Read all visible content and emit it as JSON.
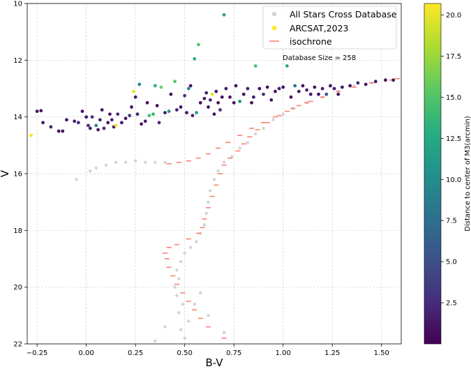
{
  "chart_data": {
    "type": "scatter",
    "title": "",
    "xlabel": "B-V",
    "ylabel": "V",
    "xlim": [
      -0.3,
      1.6
    ],
    "ylim": [
      22,
      10
    ],
    "y_inverted": true,
    "grid": true,
    "xticks": [
      -0.25,
      0.0,
      0.25,
      0.5,
      0.75,
      1.0,
      1.25,
      1.5
    ],
    "xtick_labels": [
      "−0.25",
      "0.00",
      "0.25",
      "0.50",
      "0.75",
      "1.00",
      "1.25",
      "1.50"
    ],
    "yticks": [
      10,
      12,
      14,
      16,
      18,
      20,
      22
    ],
    "ytick_labels": [
      "10",
      "12",
      "14",
      "16",
      "18",
      "20",
      "22"
    ],
    "legend": {
      "position": "top-right",
      "entries": [
        {
          "label": "All Stars Cross Database",
          "marker": "dot",
          "color": "#d3d3d3"
        },
        {
          "label": "ARCSAT,2023",
          "marker": "dot",
          "color": "#fde725"
        },
        {
          "label": "isochrone",
          "marker": "dash",
          "color": "#fa8072"
        }
      ]
    },
    "annotation": "Database Size = 258",
    "colorbar": {
      "label": "Distance to center of M3(arcmin)",
      "colormap": "viridis",
      "range": [
        0.0,
        20.7
      ],
      "ticks": [
        2.5,
        5.0,
        7.5,
        10.0,
        12.5,
        15.0,
        17.5,
        20.0
      ],
      "tick_labels": [
        "2.5",
        "5.0",
        "7.5",
        "10.0",
        "12.5",
        "15.0",
        "17.5",
        "20.0"
      ]
    },
    "series": [
      {
        "name": "All Stars Cross Database",
        "color": "#d3d3d3",
        "description": "background stars: main sequence, subgiant branch, red giant branch, horizontal branch",
        "points": [
          [
            0.5,
            21.8
          ],
          [
            0.48,
            21.5
          ],
          [
            0.52,
            21.2
          ],
          [
            0.47,
            20.9
          ],
          [
            0.49,
            20.6
          ],
          [
            0.46,
            20.3
          ],
          [
            0.45,
            20.0
          ],
          [
            0.47,
            19.7
          ],
          [
            0.46,
            19.4
          ],
          [
            0.48,
            19.1
          ],
          [
            0.5,
            18.8
          ],
          [
            0.53,
            18.6
          ],
          [
            0.56,
            18.4
          ],
          [
            0.58,
            18.1
          ],
          [
            0.6,
            17.8
          ],
          [
            0.61,
            17.4
          ],
          [
            0.62,
            17.0
          ],
          [
            0.63,
            16.6
          ],
          [
            0.65,
            16.2
          ],
          [
            0.67,
            15.9
          ],
          [
            0.7,
            15.6
          ],
          [
            0.74,
            15.4
          ],
          [
            0.78,
            15.1
          ],
          [
            0.82,
            14.9
          ],
          [
            0.86,
            14.6
          ],
          [
            0.9,
            14.4
          ],
          [
            0.95,
            14.1
          ],
          [
            1.0,
            13.9
          ],
          [
            1.05,
            13.7
          ],
          [
            1.12,
            13.5
          ],
          [
            1.2,
            13.3
          ],
          [
            1.28,
            13.1
          ],
          [
            1.36,
            12.9
          ],
          [
            1.45,
            12.8
          ],
          [
            0.2,
            15.6
          ],
          [
            0.15,
            15.6
          ],
          [
            0.1,
            15.7
          ],
          [
            0.05,
            15.8
          ],
          [
            0.02,
            15.9
          ],
          [
            0.25,
            15.55
          ],
          [
            0.3,
            15.6
          ],
          [
            0.35,
            15.6
          ],
          [
            0.4,
            15.6
          ],
          [
            -0.05,
            16.2
          ],
          [
            0.58,
            20.2
          ],
          [
            0.55,
            20.6
          ],
          [
            0.62,
            21.0
          ],
          [
            0.4,
            21.4
          ],
          [
            0.35,
            21.9
          ],
          [
            0.7,
            21.6
          ]
        ]
      },
      {
        "name": "ARCSAT,2023",
        "color": "#fde725",
        "description": "measured stars colored by distance to center of M3",
        "points": [
          [
            -0.28,
            14.65,
            20.5
          ],
          [
            -0.25,
            13.8,
            1.0
          ],
          [
            -0.23,
            13.78,
            1.2
          ],
          [
            -0.22,
            14.2,
            1.5
          ],
          [
            -0.18,
            14.35,
            2.0
          ],
          [
            -0.14,
            14.5,
            1.0
          ],
          [
            -0.12,
            14.5,
            1.3
          ],
          [
            -0.1,
            14.1,
            1.0
          ],
          [
            -0.06,
            14.15,
            1.6
          ],
          [
            -0.04,
            14.2,
            2.0
          ],
          [
            -0.02,
            13.8,
            1.2
          ],
          [
            0.0,
            14.0,
            1.0
          ],
          [
            0.01,
            14.3,
            2.5
          ],
          [
            0.02,
            14.4,
            1.5
          ],
          [
            0.03,
            14.0,
            3.0
          ],
          [
            0.05,
            14.3,
            9.0
          ],
          [
            0.06,
            14.45,
            1.0
          ],
          [
            0.07,
            14.1,
            1.8
          ],
          [
            0.08,
            13.75,
            1.4
          ],
          [
            0.09,
            14.4,
            2.6
          ],
          [
            0.11,
            14.2,
            1.0
          ],
          [
            0.12,
            13.9,
            1.1
          ],
          [
            0.13,
            14.1,
            1.9
          ],
          [
            0.14,
            14.35,
            1.0
          ],
          [
            0.15,
            14.3,
            20.0
          ],
          [
            0.16,
            13.9,
            2.2
          ],
          [
            0.18,
            14.2,
            1.4
          ],
          [
            0.2,
            14.05,
            1.0
          ],
          [
            0.22,
            13.95,
            3.5
          ],
          [
            0.23,
            13.65,
            1.2
          ],
          [
            0.24,
            13.1,
            20.2
          ],
          [
            0.25,
            13.3,
            1.6
          ],
          [
            0.26,
            13.9,
            2.0
          ],
          [
            0.27,
            12.85,
            9.5
          ],
          [
            0.28,
            14.25,
            1.0
          ],
          [
            0.3,
            14.15,
            1.7
          ],
          [
            0.31,
            13.5,
            1.1
          ],
          [
            0.32,
            13.95,
            14.5
          ],
          [
            0.34,
            13.9,
            13.5
          ],
          [
            0.35,
            12.9,
            13.0
          ],
          [
            0.36,
            13.6,
            1.0
          ],
          [
            0.37,
            14.2,
            2.3
          ],
          [
            0.38,
            12.95,
            16.0
          ],
          [
            0.4,
            13.85,
            1.5
          ],
          [
            0.42,
            13.8,
            10.5
          ],
          [
            0.43,
            13.2,
            1.0
          ],
          [
            0.45,
            12.75,
            15.0
          ],
          [
            0.46,
            13.75,
            2.0
          ],
          [
            0.48,
            13.65,
            1.2
          ],
          [
            0.5,
            13.25,
            3.0
          ],
          [
            0.51,
            13.85,
            1.0
          ],
          [
            0.52,
            13.0,
            10.0
          ],
          [
            0.53,
            12.9,
            1.0
          ],
          [
            0.54,
            13.95,
            1.6
          ],
          [
            0.55,
            11.95,
            13.0
          ],
          [
            0.56,
            13.85,
            11.5
          ],
          [
            0.57,
            11.45,
            15.0
          ],
          [
            0.58,
            13.5,
            1.0
          ],
          [
            0.6,
            13.35,
            1.4
          ],
          [
            0.61,
            13.15,
            1.8
          ],
          [
            0.62,
            13.65,
            1.0
          ],
          [
            0.63,
            13.4,
            2.2
          ],
          [
            0.64,
            13.2,
            20.0
          ],
          [
            0.65,
            13.9,
            1.0
          ],
          [
            0.66,
            13.1,
            1.3
          ],
          [
            0.67,
            13.5,
            1.0
          ],
          [
            0.68,
            13.75,
            3.0
          ],
          [
            0.69,
            13.3,
            1.0
          ],
          [
            0.7,
            10.4,
            12.0
          ],
          [
            0.71,
            13.0,
            1.6
          ],
          [
            0.73,
            13.3,
            1.0
          ],
          [
            0.75,
            13.5,
            1.2
          ],
          [
            0.76,
            12.9,
            1.0
          ],
          [
            0.78,
            13.45,
            10.5
          ],
          [
            0.8,
            13.2,
            1.0
          ],
          [
            0.82,
            13.0,
            1.9
          ],
          [
            0.84,
            13.5,
            1.0
          ],
          [
            0.85,
            13.3,
            1.4
          ],
          [
            0.86,
            12.2,
            14.5
          ],
          [
            0.88,
            13.0,
            1.0
          ],
          [
            0.9,
            13.2,
            2.6
          ],
          [
            0.92,
            12.95,
            1.0
          ],
          [
            0.94,
            13.4,
            1.2
          ],
          [
            0.96,
            13.1,
            1.0
          ],
          [
            0.98,
            13.0,
            1.7
          ],
          [
            1.0,
            12.95,
            1.0
          ],
          [
            1.02,
            12.2,
            12.5
          ],
          [
            1.04,
            13.3,
            1.0
          ],
          [
            1.06,
            12.9,
            8.0
          ],
          [
            1.08,
            13.1,
            1.4
          ],
          [
            1.1,
            12.9,
            1.0
          ],
          [
            1.12,
            13.05,
            2.0
          ],
          [
            1.14,
            13.2,
            1.0
          ],
          [
            1.16,
            12.95,
            1.3
          ],
          [
            1.18,
            13.2,
            1.0
          ],
          [
            1.2,
            13.0,
            1.6
          ],
          [
            1.22,
            13.2,
            6.0
          ],
          [
            1.24,
            12.9,
            1.0
          ],
          [
            1.26,
            13.0,
            1.8
          ],
          [
            1.28,
            13.2,
            1.0
          ],
          [
            1.3,
            12.95,
            1.2
          ],
          [
            1.34,
            12.9,
            1.0
          ],
          [
            1.38,
            12.8,
            2.5
          ],
          [
            1.42,
            12.85,
            1.0
          ],
          [
            1.47,
            12.75,
            1.4
          ],
          [
            1.52,
            12.7,
            1.0
          ],
          [
            1.56,
            12.7,
            1.2
          ]
        ]
      },
      {
        "name": "isochrone",
        "color": "#fa8072",
        "points": [
          [
            0.7,
            21.8
          ],
          [
            0.62,
            21.4
          ],
          [
            0.58,
            21.1
          ],
          [
            0.55,
            20.8
          ],
          [
            0.52,
            20.5
          ],
          [
            0.49,
            20.2
          ],
          [
            0.46,
            19.9
          ],
          [
            0.44,
            19.6
          ],
          [
            0.42,
            19.3
          ],
          [
            0.41,
            19.0
          ],
          [
            0.4,
            18.8
          ],
          [
            0.42,
            18.6
          ],
          [
            0.46,
            18.5
          ],
          [
            0.52,
            18.3
          ],
          [
            0.57,
            18.1
          ],
          [
            0.59,
            17.9
          ],
          [
            0.6,
            17.6
          ],
          [
            0.62,
            17.2
          ],
          [
            0.64,
            16.8
          ],
          [
            0.66,
            16.4
          ],
          [
            0.68,
            16.0
          ],
          [
            0.7,
            15.7
          ],
          [
            0.73,
            15.45
          ],
          [
            0.77,
            15.2
          ],
          [
            0.8,
            14.95
          ],
          [
            0.83,
            14.7
          ],
          [
            0.87,
            14.45
          ],
          [
            0.92,
            14.2
          ],
          [
            0.98,
            13.95
          ],
          [
            1.05,
            13.7
          ],
          [
            1.12,
            13.5
          ],
          [
            1.2,
            13.3
          ],
          [
            1.28,
            13.1
          ],
          [
            1.36,
            12.95
          ],
          [
            1.45,
            12.8
          ],
          [
            1.55,
            12.7
          ],
          [
            1.58,
            12.65
          ],
          [
            0.42,
            15.65
          ],
          [
            0.47,
            15.6
          ],
          [
            0.52,
            15.55
          ],
          [
            0.57,
            15.45
          ],
          [
            0.62,
            15.3
          ],
          [
            0.67,
            15.1
          ],
          [
            0.72,
            14.9
          ],
          [
            0.78,
            14.65
          ],
          [
            0.84,
            14.4
          ],
          [
            0.9,
            14.2
          ],
          [
            0.96,
            14.0
          ],
          [
            1.02,
            13.8
          ],
          [
            1.08,
            13.6
          ],
          [
            1.14,
            13.45
          ]
        ]
      }
    ]
  }
}
